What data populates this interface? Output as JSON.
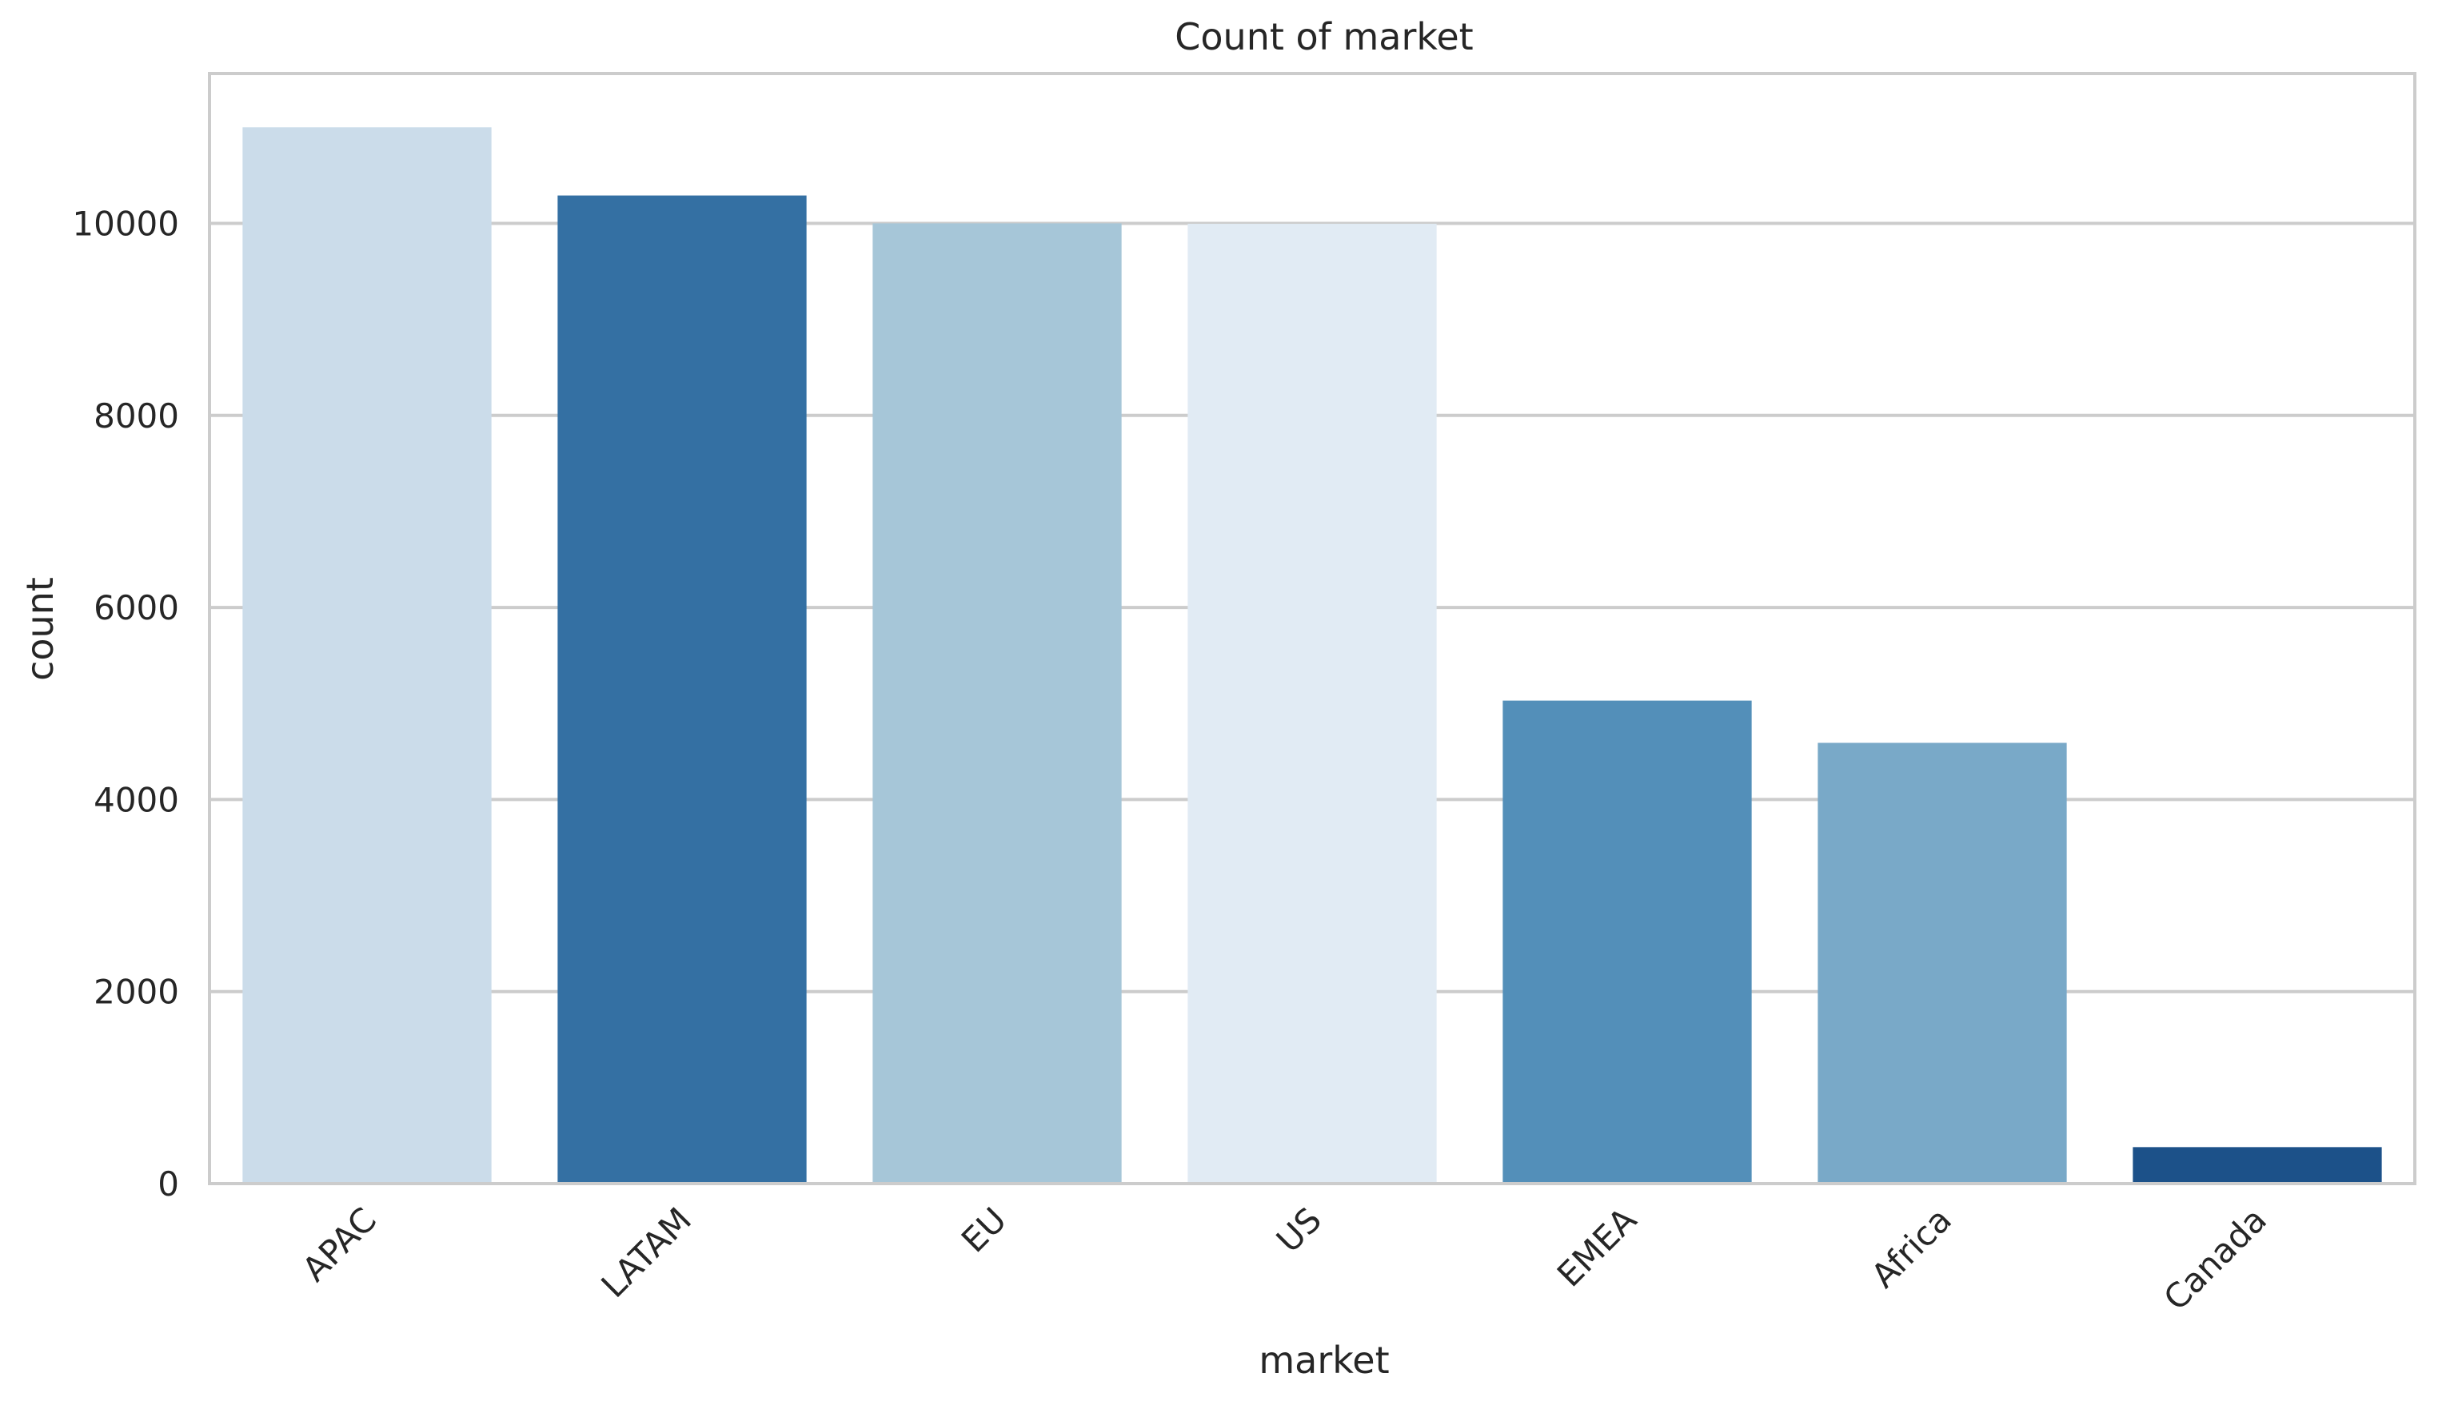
{
  "chart_data": {
    "type": "bar",
    "title": "Count of market",
    "xlabel": "market",
    "ylabel": "count",
    "categories": [
      "APAC",
      "LATAM",
      "EU",
      "US",
      "EMEA",
      "Africa",
      "Canada"
    ],
    "values": [
      11000,
      10290,
      10000,
      9995,
      5030,
      4590,
      380
    ],
    "colors": [
      "#cbdcea",
      "#3470a3",
      "#a6c6d8",
      "#e1ebf4",
      "#538fb9",
      "#79a9c8",
      "#1c5189"
    ],
    "ylim": [
      0,
      11560
    ],
    "yticks": [
      0,
      2000,
      4000,
      6000,
      8000,
      10000
    ],
    "ytick_labels": [
      "0",
      "2000",
      "4000",
      "6000",
      "8000",
      "10000"
    ],
    "xtick_rotation_deg": 45,
    "grid": "horizontal",
    "legend": "none"
  }
}
